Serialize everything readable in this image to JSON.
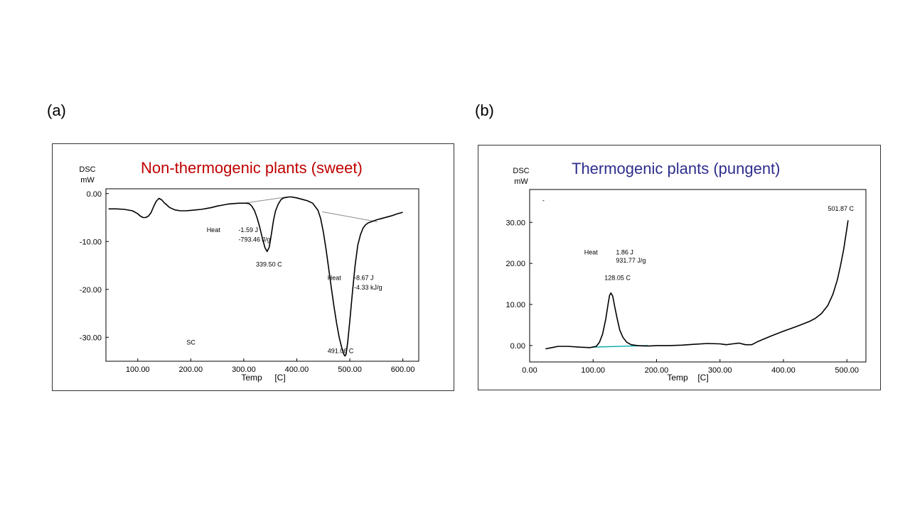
{
  "panels": [
    {
      "letter": "(a)"
    },
    {
      "letter": "(b)"
    }
  ],
  "chart_data": [
    {
      "type": "line",
      "title": "Non-thermogenic plants (sweet)",
      "title_color": "#c00000",
      "ylabel_line1": "DSC",
      "ylabel_line2": "mW",
      "xlabel": "Temp",
      "xunit": "[C]",
      "xlim": [
        40,
        630
      ],
      "ylim": [
        -35,
        1
      ],
      "xticks": [
        100,
        200,
        300,
        400,
        500,
        600
      ],
      "xtick_labels": [
        "100.00",
        "200.00",
        "300.00",
        "400.00",
        "500.00",
        "600.00"
      ],
      "yticks": [
        0,
        -10,
        -20,
        -30
      ],
      "ytick_labels": [
        "0.00",
        "-10.00",
        "-20.00",
        "-30.00"
      ],
      "series": [
        {
          "color": "#000000",
          "x": [
            45,
            60,
            75,
            90,
            100,
            105,
            110,
            115,
            120,
            125,
            130,
            135,
            140,
            145,
            150,
            155,
            160,
            170,
            180,
            190,
            200,
            210,
            220,
            230,
            240,
            250,
            260,
            270,
            280,
            290,
            300,
            305,
            310,
            315,
            320,
            325,
            330,
            335,
            340,
            344,
            348,
            352,
            356,
            360,
            365,
            370,
            375,
            380,
            385,
            390,
            395,
            400,
            410,
            420,
            430,
            440,
            445,
            450,
            455,
            460,
            465,
            470,
            475,
            480,
            485,
            489,
            491.06,
            493,
            496,
            500,
            505,
            510,
            515,
            520,
            525,
            530,
            535,
            540,
            545,
            550,
            560,
            570,
            580,
            590,
            600
          ],
          "y": [
            -3.2,
            -3.2,
            -3.3,
            -3.6,
            -4.2,
            -4.7,
            -5.0,
            -5.0,
            -4.7,
            -4.0,
            -2.7,
            -1.6,
            -1.0,
            -1.3,
            -1.9,
            -2.4,
            -2.9,
            -3.4,
            -3.6,
            -3.6,
            -3.5,
            -3.4,
            -3.3,
            -3.1,
            -2.9,
            -2.6,
            -2.4,
            -2.2,
            -2.1,
            -2.0,
            -2.0,
            -2.0,
            -2.1,
            -2.6,
            -3.5,
            -5.0,
            -7.0,
            -9.3,
            -11.3,
            -12.1,
            -11.2,
            -8.5,
            -5.6,
            -3.6,
            -2.2,
            -1.3,
            -0.9,
            -0.8,
            -0.7,
            -0.7,
            -0.8,
            -0.9,
            -1.2,
            -1.5,
            -2.0,
            -3.5,
            -5.2,
            -8.0,
            -11.5,
            -15.5,
            -19.5,
            -23.5,
            -27.0,
            -30.0,
            -32.3,
            -33.6,
            -33.9,
            -33.5,
            -31.0,
            -26.5,
            -20.5,
            -15.0,
            -10.8,
            -8.6,
            -7.2,
            -6.5,
            -6.1,
            -5.9,
            -5.7,
            -5.5,
            -5.2,
            -4.9,
            -4.6,
            -4.2,
            -3.9
          ]
        }
      ],
      "baselines": [
        {
          "x": [
            300,
            382
          ],
          "y": [
            -2.0,
            -0.7
          ]
        },
        {
          "x": [
            448,
            552
          ],
          "y": [
            -3.8,
            -5.9
          ]
        }
      ],
      "annotations": [
        {
          "x": 230,
          "y": -8.0,
          "text": "Heat"
        },
        {
          "x": 290,
          "y": -8.0,
          "text": "-1.59  J"
        },
        {
          "x": 290,
          "y": -10.0,
          "text": "-793.46   J/g"
        },
        {
          "x": 323,
          "y": -15.2,
          "text": "339.50   C"
        },
        {
          "x": 458,
          "y": -18.0,
          "text": "Heat"
        },
        {
          "x": 508,
          "y": -18.0,
          "text": "-8.67  J"
        },
        {
          "x": 508,
          "y": -20.0,
          "text": "-4.33   kJ/g"
        },
        {
          "x": 192,
          "y": -31.5,
          "text": "SC"
        },
        {
          "x": 458,
          "y": -33.3,
          "text": "491.06    C"
        }
      ]
    },
    {
      "type": "line",
      "title": "Thermogenic plants (pungent)",
      "title_color": "#2e2e8e",
      "ylabel_line1": "DSC",
      "ylabel_line2": "mW",
      "xlabel": "Temp",
      "xunit": "[C]",
      "xlim": [
        0,
        530
      ],
      "ylim": [
        -4,
        38
      ],
      "xticks": [
        0,
        100,
        200,
        300,
        400,
        500
      ],
      "xtick_labels": [
        "0.00",
        "100.00",
        "200.00",
        "300.00",
        "400.00",
        "500.00"
      ],
      "yticks": [
        0,
        10,
        20,
        30
      ],
      "ytick_labels": [
        "0.00",
        "10.00",
        "20.00",
        "30.00"
      ],
      "series": [
        {
          "color": "#000000",
          "x": [
            25,
            35,
            45,
            60,
            80,
            95,
            105,
            110,
            115,
            120,
            124,
            126,
            128.05,
            131,
            134,
            138,
            142,
            147,
            153,
            160,
            170,
            180,
            190,
            200,
            220,
            240,
            260,
            280,
            300,
            310,
            320,
            330,
            340,
            350,
            360,
            380,
            400,
            420,
            440,
            450,
            460,
            470,
            478,
            485,
            490,
            495,
            500,
            501.87
          ],
          "y": [
            -0.8,
            -0.5,
            -0.2,
            -0.2,
            -0.4,
            -0.5,
            -0.2,
            0.8,
            2.8,
            6.5,
            10.5,
            12.2,
            12.8,
            12.0,
            9.5,
            6.5,
            3.8,
            2.0,
            0.8,
            0.2,
            0.0,
            -0.1,
            -0.1,
            0.0,
            0.0,
            0.1,
            0.3,
            0.5,
            0.4,
            0.2,
            0.4,
            0.6,
            0.2,
            0.2,
            1.0,
            2.3,
            3.5,
            4.6,
            5.8,
            6.6,
            7.8,
            9.8,
            12.5,
            16.0,
            19.5,
            23.5,
            28.5,
            30.5
          ]
        }
      ],
      "baselines": [
        {
          "x": [
            98,
            186
          ],
          "y": [
            -0.4,
            0.0
          ],
          "color": "#00a8a8"
        }
      ],
      "annotations": [
        {
          "x": 20,
          "y": 34.8,
          "text": "-"
        },
        {
          "x": 86,
          "y": 22.2,
          "text": "Heat"
        },
        {
          "x": 136,
          "y": 22.2,
          "text": "1.86  J"
        },
        {
          "x": 136,
          "y": 20.2,
          "text": "931.77   J/g"
        },
        {
          "x": 118,
          "y": 16.0,
          "text": "128.05  C"
        },
        {
          "x": 470,
          "y": 32.8,
          "text": "501.87   C"
        }
      ]
    }
  ]
}
